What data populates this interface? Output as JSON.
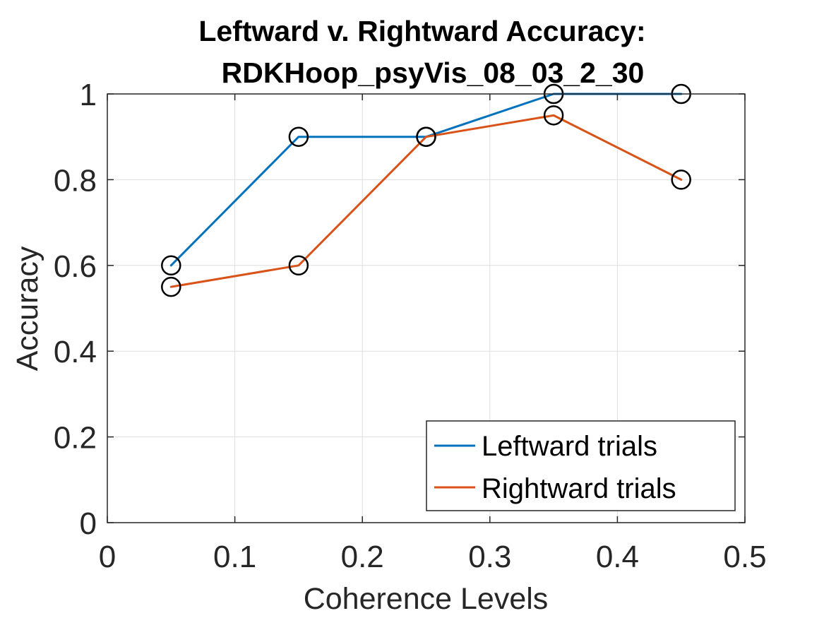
{
  "chart_data": {
    "type": "line",
    "title": [
      "Leftward v. Rightward Accuracy:",
      "RDKHoop_psyVis_08_03_2_30"
    ],
    "xlabel": "Coherence Levels",
    "ylabel": "Accuracy",
    "xlim": [
      0,
      0.5
    ],
    "ylim": [
      0,
      1
    ],
    "xticks": [
      0,
      0.1,
      0.2,
      0.3,
      0.4,
      0.5
    ],
    "xtick_labels": [
      "0",
      "0.1",
      "0.2",
      "0.3",
      "0.4",
      "0.5"
    ],
    "yticks": [
      0,
      0.2,
      0.4,
      0.6,
      0.8,
      1
    ],
    "ytick_labels": [
      "0",
      "0.2",
      "0.4",
      "0.6",
      "0.8",
      "1"
    ],
    "grid": true,
    "legend_position": "bottom-right",
    "x": [
      0.05,
      0.15,
      0.25,
      0.35,
      0.45
    ],
    "series": [
      {
        "name": "Leftward trials",
        "color": "#0072BD",
        "values": [
          0.6,
          0.9,
          0.9,
          1.0,
          1.0
        ]
      },
      {
        "name": "Rightward trials",
        "color": "#D95319",
        "values": [
          0.55,
          0.6,
          0.9,
          0.95,
          0.8
        ]
      }
    ],
    "marker": "open-circle",
    "marker_color": "#000000"
  }
}
